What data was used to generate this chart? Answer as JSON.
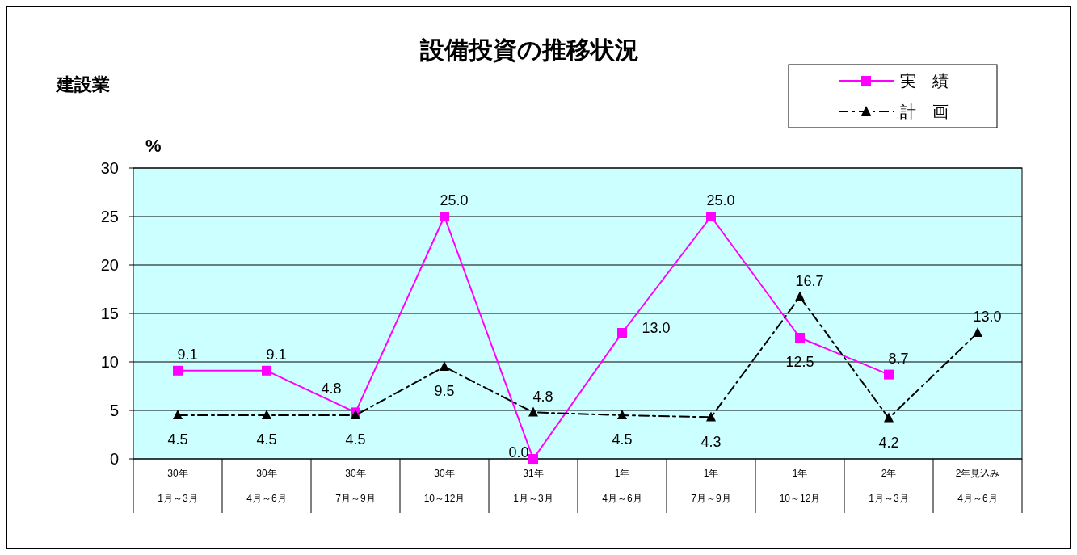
{
  "chart_data": {
    "type": "line",
    "title": "設備投資の推移状況",
    "ylabel": "%",
    "annotations": [
      "建設業"
    ],
    "categories": [
      "30年\n1月～3月",
      "30年\n4月～6月",
      "30年\n7月～9月",
      "30年\n10～12月",
      "31年\n1月～3月",
      "1年\n4月～6月",
      "1年\n7月～9月",
      "1年\n10～12月",
      "2年\n1月～3月",
      "2年見込み\n4月～6月"
    ],
    "series": [
      {
        "name": "実　績",
        "color": "#ff00ff",
        "marker": "square",
        "line_style": "solid",
        "values": [
          9.1,
          9.1,
          4.8,
          25.0,
          0.0,
          13.0,
          25.0,
          12.5,
          8.7,
          null
        ],
        "value_labels": [
          "9.1",
          "9.1",
          "4.8",
          "25.0",
          "0.0",
          "13.0",
          "25.0",
          "12.5",
          "8.7",
          null
        ]
      },
      {
        "name": "計　画",
        "color": "#000000",
        "marker": "triangle",
        "line_style": "dashed",
        "values": [
          4.5,
          4.5,
          4.5,
          9.5,
          4.8,
          4.5,
          4.3,
          16.7,
          4.2,
          13.0
        ],
        "value_labels": [
          "4.5",
          "4.5",
          "4.5",
          "9.5",
          "4.8",
          "4.5",
          "4.3",
          "16.7",
          "4.2",
          "13.0"
        ]
      }
    ],
    "ylim": [
      0,
      30
    ],
    "yticks": [
      0,
      5,
      10,
      15,
      20,
      25,
      30
    ],
    "grid": "y",
    "legend": "top right"
  }
}
